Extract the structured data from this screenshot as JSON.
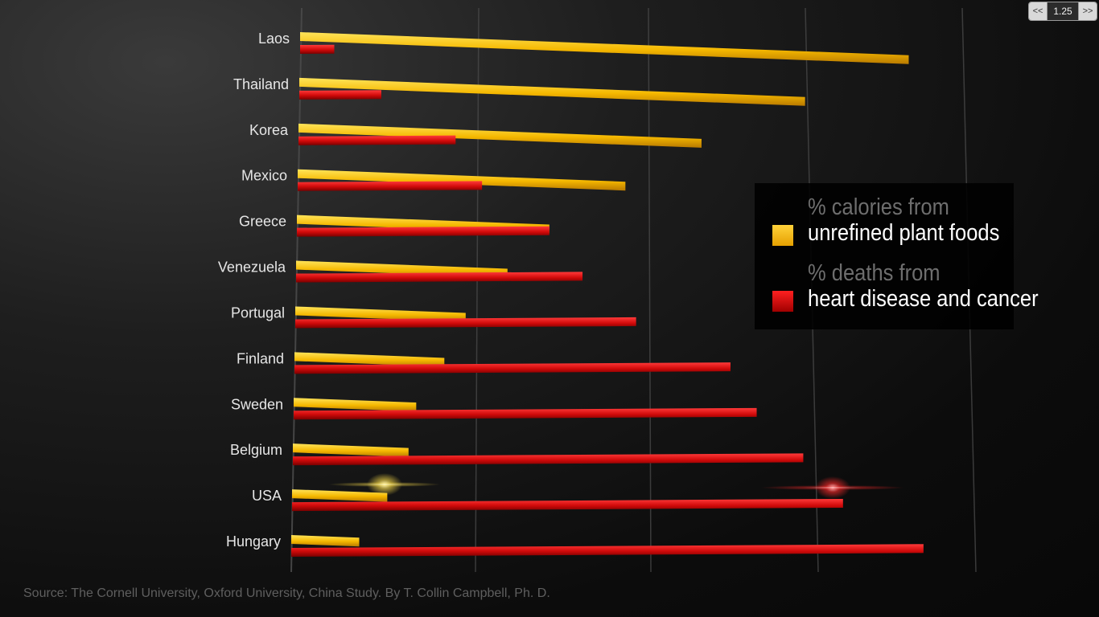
{
  "player": {
    "prev_label": "<<",
    "speed_value": "1.25",
    "next_label": ">>"
  },
  "legend": {
    "series1_faded": "% calories from",
    "series1_label": "unrefined plant foods",
    "series2_faded": "% deaths from",
    "series2_label": "heart disease and cancer"
  },
  "source": "Source: The Cornell University, Oxford University, China Study. By T. Collin Campbell, Ph. D.",
  "colors": {
    "plant": "#f5b800",
    "deaths": "#d10a0a",
    "grid": "#4a4a4a",
    "label": "#e6e6e6"
  },
  "chart_data": {
    "type": "bar",
    "orientation": "horizontal",
    "categories": [
      "Laos",
      "Thailand",
      "Korea",
      "Mexico",
      "Greece",
      "Venezuela",
      "Portugal",
      "Finland",
      "Sweden",
      "Belgium",
      "USA",
      "Hungary"
    ],
    "series": [
      {
        "name": "% calories from unrefined plant foods",
        "values": [
          89,
          74,
          59,
          48,
          37,
          31,
          25,
          22,
          18,
          17,
          14,
          10
        ]
      },
      {
        "name": "% deaths from heart disease and cancer",
        "values": [
          5,
          12,
          23,
          27,
          37,
          42,
          50,
          64,
          68,
          75,
          81,
          93
        ]
      }
    ],
    "xlim": [
      0,
      100
    ],
    "grid": true,
    "legend_position": "right"
  }
}
